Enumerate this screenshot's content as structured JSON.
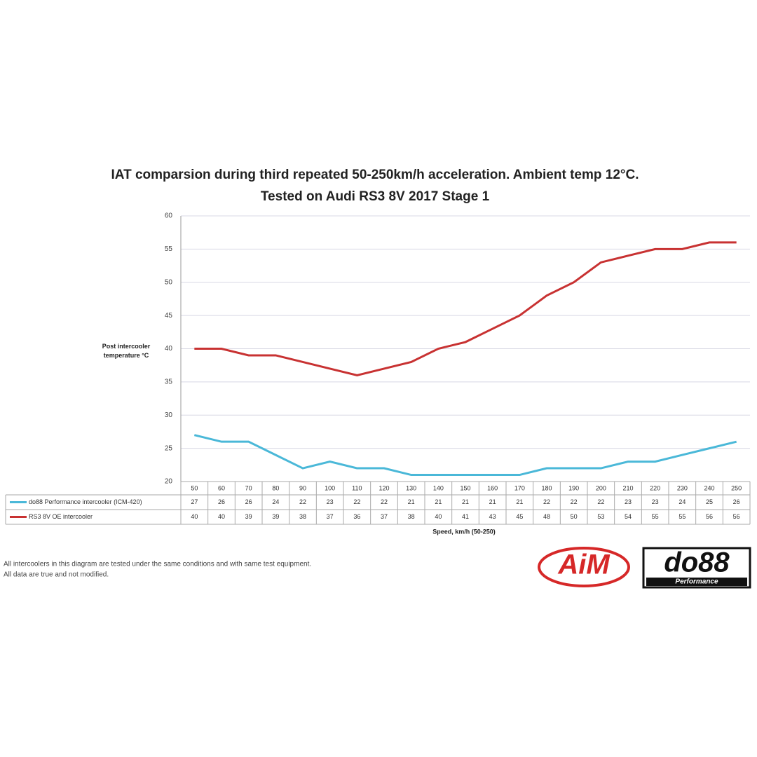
{
  "chart_data": {
    "type": "line",
    "title": "IAT comparsion during third repeated 50-250km/h acceleration. Ambient temp 12°C.",
    "subtitle": "Tested on Audi RS3 8V 2017 Stage 1",
    "ylabel": "Post intercooler temperature °C",
    "xlabel": "Speed, km/h (50-250)",
    "x": [
      50,
      60,
      70,
      80,
      90,
      100,
      110,
      120,
      130,
      140,
      150,
      160,
      170,
      180,
      190,
      200,
      210,
      220,
      230,
      240,
      250
    ],
    "xlim": [
      45,
      255
    ],
    "ylim": [
      20,
      60
    ],
    "yticks": [
      20,
      25,
      30,
      35,
      40,
      45,
      50,
      55,
      60
    ],
    "grid": true,
    "series": [
      {
        "name": "do88 Performance intercooler (ICM-420)",
        "color": "#4ab8d8",
        "values": [
          27,
          26,
          26,
          24,
          22,
          23,
          22,
          22,
          21,
          21,
          21,
          21,
          21,
          22,
          22,
          22,
          23,
          23,
          24,
          25,
          26
        ]
      },
      {
        "name": "RS3 8V OE intercooler",
        "color": "#c83232",
        "values": [
          40,
          40,
          39,
          39,
          38,
          37,
          36,
          37,
          38,
          40,
          41,
          43,
          45,
          48,
          50,
          53,
          54,
          55,
          55,
          56,
          56
        ]
      }
    ]
  },
  "footnote": [
    "All intercoolers in this diagram are tested under the same conditions and with same test equipment.",
    "All data are true and not modified."
  ],
  "logos": {
    "aim": "AiM",
    "do88": "do88",
    "do88_sub": "Performance"
  }
}
